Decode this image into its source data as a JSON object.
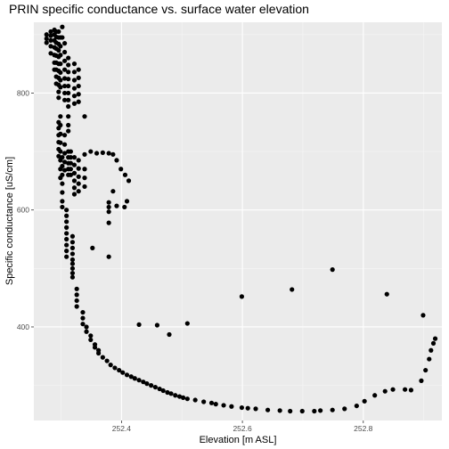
{
  "chart_data": {
    "type": "scatter",
    "title": "PRIN specific conductance vs. surface water elevation",
    "xlabel": "Elevation [m ASL]",
    "ylabel": "Specific conductance [uS/cm]",
    "xlim": [
      252.255,
      252.93
    ],
    "ylim": [
      240,
      921
    ],
    "x_ticks": [
      252.4,
      252.6,
      252.8
    ],
    "x_tick_labels": [
      "252.4",
      "252.6",
      "252.8"
    ],
    "y_ticks": [
      400,
      600,
      800
    ],
    "y_tick_labels": [
      "400",
      "600",
      "800"
    ],
    "grid": true,
    "legend": "none",
    "colors": {
      "panel": "#ebebeb",
      "grid_major": "#ffffff",
      "point": "#000000"
    },
    "points": [
      [
        252.276,
        900
      ],
      [
        252.276,
        893
      ],
      [
        252.276,
        886
      ],
      [
        252.283,
        905
      ],
      [
        252.283,
        898
      ],
      [
        252.283,
        890
      ],
      [
        252.283,
        880
      ],
      [
        252.283,
        868
      ],
      [
        252.289,
        908
      ],
      [
        252.289,
        900
      ],
      [
        252.289,
        890
      ],
      [
        252.289,
        878
      ],
      [
        252.289,
        865
      ],
      [
        252.289,
        852
      ],
      [
        252.289,
        840
      ],
      [
        252.292,
        905
      ],
      [
        252.292,
        896
      ],
      [
        252.292,
        886
      ],
      [
        252.292,
        876
      ],
      [
        252.292,
        864
      ],
      [
        252.292,
        852
      ],
      [
        252.292,
        840
      ],
      [
        252.292,
        828
      ],
      [
        252.292,
        816
      ],
      [
        252.296,
        905
      ],
      [
        252.296,
        895
      ],
      [
        252.296,
        884
      ],
      [
        252.296,
        873
      ],
      [
        252.296,
        862
      ],
      [
        252.296,
        850
      ],
      [
        252.296,
        838
      ],
      [
        252.296,
        826
      ],
      [
        252.296,
        814
      ],
      [
        252.296,
        802
      ],
      [
        252.296,
        792
      ],
      [
        252.296,
        750
      ],
      [
        252.296,
        740
      ],
      [
        252.296,
        728
      ],
      [
        252.296,
        716
      ],
      [
        252.296,
        704
      ],
      [
        252.296,
        692
      ],
      [
        252.299,
        895
      ],
      [
        252.299,
        880
      ],
      [
        252.299,
        865
      ],
      [
        252.299,
        850
      ],
      [
        252.299,
        835
      ],
      [
        252.299,
        822
      ],
      [
        252.299,
        810
      ],
      [
        252.299,
        760
      ],
      [
        252.299,
        745
      ],
      [
        252.299,
        730
      ],
      [
        252.299,
        715
      ],
      [
        252.299,
        700
      ],
      [
        252.299,
        685
      ],
      [
        252.299,
        670
      ],
      [
        252.299,
        655
      ],
      [
        252.302,
        913
      ],
      [
        252.302,
        895
      ],
      [
        252.302,
        690
      ],
      [
        252.302,
        675
      ],
      [
        252.302,
        660
      ],
      [
        252.302,
        645
      ],
      [
        252.302,
        630
      ],
      [
        252.302,
        615
      ],
      [
        252.302,
        605
      ],
      [
        252.306,
        885
      ],
      [
        252.306,
        870
      ],
      [
        252.306,
        855
      ],
      [
        252.306,
        840
      ],
      [
        252.306,
        825
      ],
      [
        252.306,
        812
      ],
      [
        252.306,
        800
      ],
      [
        252.306,
        788
      ],
      [
        252.306,
        728
      ],
      [
        252.306,
        712
      ],
      [
        252.306,
        697
      ],
      [
        252.306,
        682
      ],
      [
        252.306,
        668
      ],
      [
        252.309,
        600
      ],
      [
        252.309,
        590
      ],
      [
        252.309,
        580
      ],
      [
        252.309,
        570
      ],
      [
        252.309,
        560
      ],
      [
        252.309,
        550
      ],
      [
        252.309,
        540
      ],
      [
        252.309,
        530
      ],
      [
        252.309,
        520
      ],
      [
        252.312,
        860
      ],
      [
        252.312,
        848
      ],
      [
        252.312,
        836
      ],
      [
        252.312,
        824
      ],
      [
        252.312,
        812
      ],
      [
        252.312,
        800
      ],
      [
        252.312,
        788
      ],
      [
        252.312,
        777
      ],
      [
        252.312,
        760
      ],
      [
        252.312,
        745
      ],
      [
        252.312,
        735
      ],
      [
        252.312,
        700
      ],
      [
        252.312,
        690
      ],
      [
        252.312,
        680
      ],
      [
        252.312,
        670
      ],
      [
        252.312,
        660
      ],
      [
        252.316,
        700
      ],
      [
        252.316,
        690
      ],
      [
        252.316,
        680
      ],
      [
        252.316,
        670
      ],
      [
        252.316,
        660
      ],
      [
        252.319,
        555
      ],
      [
        252.319,
        545
      ],
      [
        252.319,
        535
      ],
      [
        252.319,
        525
      ],
      [
        252.319,
        515
      ],
      [
        252.319,
        508
      ],
      [
        252.319,
        500
      ],
      [
        252.319,
        492
      ],
      [
        252.319,
        485
      ],
      [
        252.322,
        850
      ],
      [
        252.322,
        836
      ],
      [
        252.322,
        822
      ],
      [
        252.322,
        808
      ],
      [
        252.322,
        795
      ],
      [
        252.322,
        782
      ],
      [
        252.322,
        690
      ],
      [
        252.322,
        677
      ],
      [
        252.322,
        663
      ],
      [
        252.322,
        650
      ],
      [
        252.322,
        638
      ],
      [
        252.322,
        627
      ],
      [
        252.326,
        465
      ],
      [
        252.326,
        455
      ],
      [
        252.326,
        445
      ],
      [
        252.326,
        435
      ],
      [
        252.329,
        840
      ],
      [
        252.329,
        826
      ],
      [
        252.329,
        812
      ],
      [
        252.329,
        798
      ],
      [
        252.329,
        785
      ],
      [
        252.329,
        685
      ],
      [
        252.329,
        671
      ],
      [
        252.329,
        657
      ],
      [
        252.329,
        645
      ],
      [
        252.329,
        632
      ],
      [
        252.336,
        425
      ],
      [
        252.336,
        415
      ],
      [
        252.336,
        405
      ],
      [
        252.339,
        760
      ],
      [
        252.339,
        695
      ],
      [
        252.339,
        670
      ],
      [
        252.339,
        655
      ],
      [
        252.339,
        640
      ],
      [
        252.342,
        400
      ],
      [
        252.342,
        392
      ],
      [
        252.349,
        700
      ],
      [
        252.349,
        385
      ],
      [
        252.349,
        378
      ],
      [
        252.352,
        535
      ],
      [
        252.356,
        370
      ],
      [
        252.356,
        365
      ],
      [
        252.359,
        697
      ],
      [
        252.362,
        360
      ],
      [
        252.362,
        355
      ],
      [
        252.369,
        698
      ],
      [
        252.369,
        348
      ],
      [
        252.376,
        342
      ],
      [
        252.379,
        697
      ],
      [
        252.379,
        613
      ],
      [
        252.379,
        605
      ],
      [
        252.379,
        597
      ],
      [
        252.379,
        578
      ],
      [
        252.379,
        520
      ],
      [
        252.382,
        335
      ],
      [
        252.386,
        695
      ],
      [
        252.386,
        632
      ],
      [
        252.389,
        330
      ],
      [
        252.392,
        685
      ],
      [
        252.392,
        607
      ],
      [
        252.396,
        326
      ],
      [
        252.399,
        670
      ],
      [
        252.402,
        322
      ],
      [
        252.405,
        605
      ],
      [
        252.406,
        660
      ],
      [
        252.409,
        615
      ],
      [
        252.409,
        318
      ],
      [
        252.412,
        650
      ],
      [
        252.416,
        315
      ],
      [
        252.422,
        312
      ],
      [
        252.429,
        404
      ],
      [
        252.429,
        309
      ],
      [
        252.436,
        306
      ],
      [
        252.442,
        303
      ],
      [
        252.449,
        300
      ],
      [
        252.456,
        297
      ],
      [
        252.459,
        403
      ],
      [
        252.463,
        294
      ],
      [
        252.469,
        291
      ],
      [
        252.476,
        288
      ],
      [
        252.479,
        387
      ],
      [
        252.482,
        286
      ],
      [
        252.489,
        283
      ],
      [
        252.496,
        281
      ],
      [
        252.502,
        279
      ],
      [
        252.509,
        406
      ],
      [
        252.509,
        277
      ],
      [
        252.522,
        275
      ],
      [
        252.536,
        272
      ],
      [
        252.549,
        270
      ],
      [
        252.556,
        268
      ],
      [
        252.569,
        266
      ],
      [
        252.582,
        264
      ],
      [
        252.599,
        262
      ],
      [
        252.599,
        452
      ],
      [
        252.609,
        261
      ],
      [
        252.622,
        260
      ],
      [
        252.642,
        258
      ],
      [
        252.662,
        257
      ],
      [
        252.679,
        256
      ],
      [
        252.682,
        464
      ],
      [
        252.699,
        256
      ],
      [
        252.719,
        256
      ],
      [
        252.729,
        257
      ],
      [
        252.749,
        498
      ],
      [
        252.749,
        258
      ],
      [
        252.769,
        260
      ],
      [
        252.789,
        265
      ],
      [
        252.802,
        273
      ],
      [
        252.819,
        283
      ],
      [
        252.836,
        290
      ],
      [
        252.839,
        456
      ],
      [
        252.849,
        293
      ],
      [
        252.869,
        293
      ],
      [
        252.879,
        292
      ],
      [
        252.896,
        308
      ],
      [
        252.899,
        420
      ],
      [
        252.903,
        326
      ],
      [
        252.909,
        345
      ],
      [
        252.912,
        360
      ],
      [
        252.916,
        372
      ],
      [
        252.919,
        380
      ]
    ]
  }
}
